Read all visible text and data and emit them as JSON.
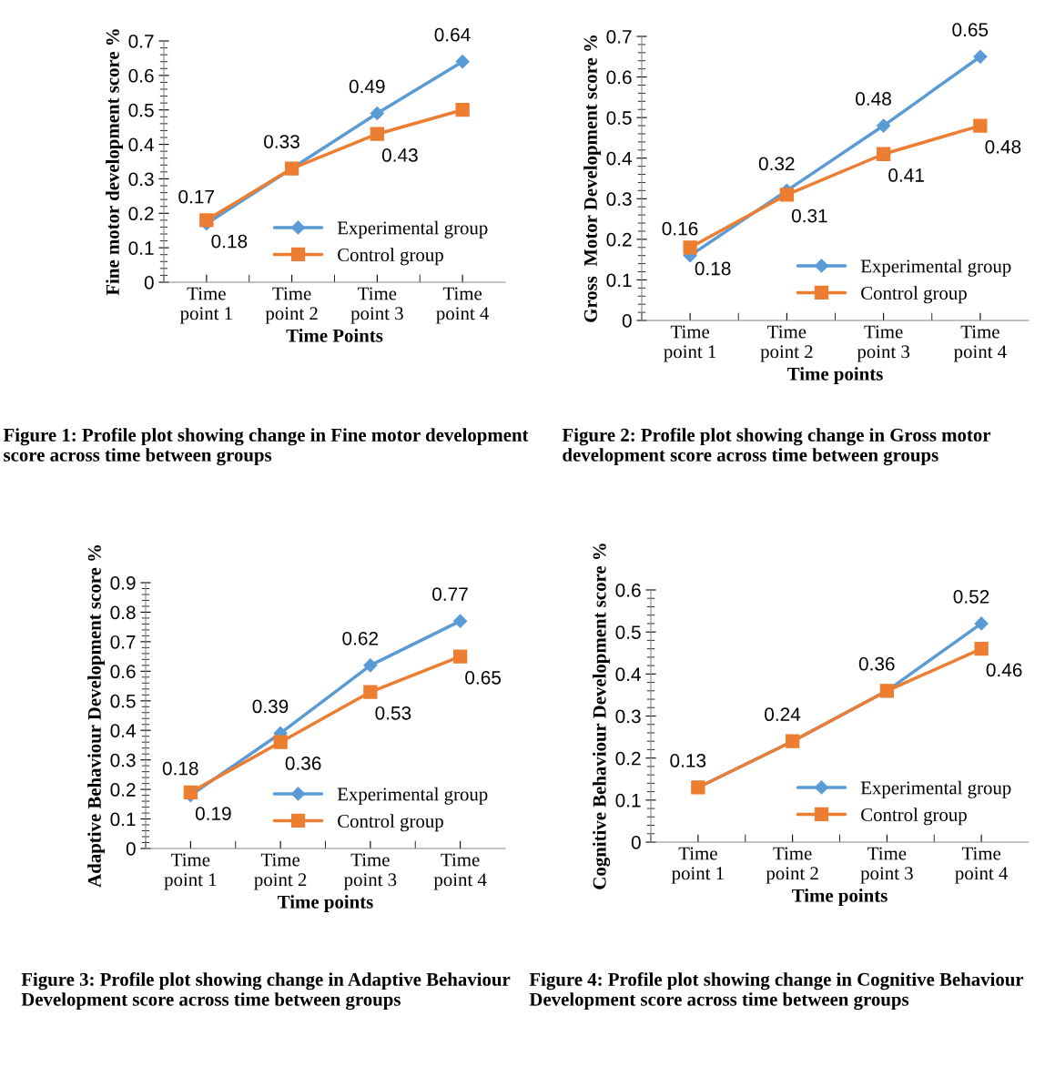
{
  "chart_data": [
    {
      "type": "line",
      "ylabel": "Fine motor development score %",
      "xlabel": "Time Points",
      "categories": [
        "Time point 1",
        "Time point 2",
        "Time point 3",
        "Time point 4"
      ],
      "ylim": [
        0,
        0.7
      ],
      "yticks": [
        0,
        0.1,
        0.2,
        0.3,
        0.4,
        0.5,
        0.6,
        0.7
      ],
      "legend": "lower right",
      "series": [
        {
          "name": "Experimental group",
          "color": "#5b9bd5",
          "marker": "diamond",
          "values": [
            0.17,
            0.33,
            0.49,
            0.64
          ],
          "value_labels": [
            "0.17",
            "0.33",
            "0.49",
            "0.64"
          ]
        },
        {
          "name": "Control group",
          "color": "#ed7d31",
          "marker": "square",
          "values": [
            0.18,
            0.33,
            0.43,
            0.5
          ],
          "value_labels": [
            "0.18",
            null,
            "0.43",
            null
          ]
        }
      ],
      "annotations": [
        "Figure 1: Profile plot showing change in Fine motor development score across time between groups"
      ]
    },
    {
      "type": "line",
      "ylabel": "Gross  Motor Development score %",
      "xlabel": "Time points",
      "categories": [
        "Time point 1",
        "Time point 2",
        "Time point 3",
        "Time point 4"
      ],
      "ylim": [
        0,
        0.7
      ],
      "yticks": [
        0,
        0.1,
        0.2,
        0.3,
        0.4,
        0.5,
        0.6,
        0.7
      ],
      "legend": "lower right",
      "series": [
        {
          "name": "Experimental group",
          "color": "#5b9bd5",
          "marker": "diamond",
          "values": [
            0.16,
            0.32,
            0.48,
            0.65
          ],
          "value_labels": [
            "0.16",
            "0.32",
            "0.48",
            "0.65"
          ]
        },
        {
          "name": "Control group",
          "color": "#ed7d31",
          "marker": "square",
          "values": [
            0.18,
            0.31,
            0.41,
            0.48
          ],
          "value_labels": [
            "0.18",
            "0.31",
            "0.41",
            "0.48"
          ]
        }
      ],
      "annotations": [
        "Figure 2: Profile plot showing change in Gross motor development score across time between groups"
      ]
    },
    {
      "type": "line",
      "ylabel": "Adaptive Behaviour Development score %",
      "xlabel": "Time points",
      "categories": [
        "Time point 1",
        "Time point 2",
        "Time point 3",
        "Time point 4"
      ],
      "ylim": [
        0,
        0.9
      ],
      "yticks": [
        0,
        0.1,
        0.2,
        0.3,
        0.4,
        0.5,
        0.6,
        0.7,
        0.8,
        0.9
      ],
      "legend": "lower right",
      "series": [
        {
          "name": "Experimental group",
          "color": "#5b9bd5",
          "marker": "diamond",
          "values": [
            0.18,
            0.39,
            0.62,
            0.77
          ],
          "value_labels": [
            "0.18",
            "0.39",
            "0.62",
            "0.77"
          ]
        },
        {
          "name": "Control group",
          "color": "#ed7d31",
          "marker": "square",
          "values": [
            0.19,
            0.36,
            0.53,
            0.65
          ],
          "value_labels": [
            "0.19",
            "0.36",
            "0.53",
            "0.65"
          ]
        }
      ],
      "annotations": [
        "Figure 3: Profile plot showing change in Adaptive Behaviour Development score across time between groups"
      ]
    },
    {
      "type": "line",
      "ylabel": "Cognitive Behaviour Development score %",
      "xlabel": "Time points",
      "categories": [
        "Time point 1",
        "Time point 2",
        "Time point 3",
        "Time point 4"
      ],
      "ylim": [
        0,
        0.6
      ],
      "yticks": [
        0,
        0.1,
        0.2,
        0.3,
        0.4,
        0.5,
        0.6
      ],
      "legend": "lower right",
      "series": [
        {
          "name": "Experimental group",
          "color": "#5b9bd5",
          "marker": "diamond",
          "values": [
            0.13,
            0.24,
            0.36,
            0.52
          ],
          "value_labels": [
            "0.13",
            "0.24",
            "0.36",
            "0.52"
          ]
        },
        {
          "name": "Control group",
          "color": "#ed7d31",
          "marker": "square",
          "values": [
            0.13,
            0.24,
            0.36,
            0.46
          ],
          "value_labels": [
            null,
            null,
            null,
            "0.46"
          ]
        }
      ],
      "annotations": [
        "Figure 4: Profile plot showing change in Cognitive Behaviour Development score across time between groups"
      ]
    }
  ]
}
